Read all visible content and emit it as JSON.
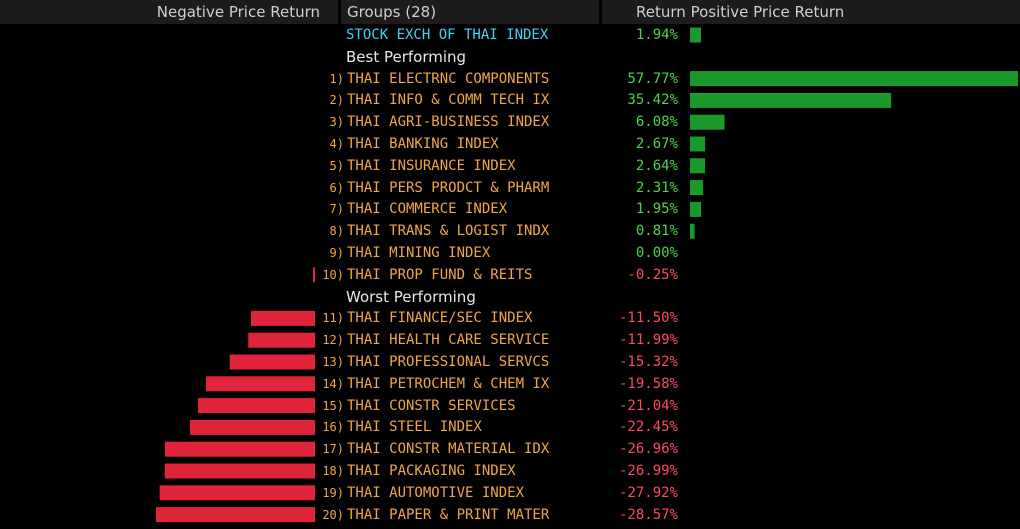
{
  "header": {
    "negative_label": "Negative Price Return",
    "groups_label": "Groups (28)",
    "return_label": "Return",
    "positive_label": "Positive Price Return"
  },
  "sections": {
    "best": "Best Performing",
    "worst": "Worst Performing"
  },
  "colors": {
    "positive": "#1a9a2a",
    "negative": "#e0243a"
  },
  "chart_data": {
    "type": "bar",
    "benchmark": {
      "name": "STOCK EXCH OF THAI INDEX",
      "value": 1.94,
      "label": "1.94%"
    },
    "rows": [
      {
        "rank": "1)",
        "name": "THAI ELECTRNC COMPONENTS",
        "value": 57.77,
        "label": "57.77%"
      },
      {
        "rank": "2)",
        "name": "THAI INFO & COMM TECH IX",
        "value": 35.42,
        "label": "35.42%"
      },
      {
        "rank": "3)",
        "name": "THAI AGRI-BUSINESS INDEX",
        "value": 6.08,
        "label": "6.08%"
      },
      {
        "rank": "4)",
        "name": "THAI BANKING INDEX",
        "value": 2.67,
        "label": "2.67%"
      },
      {
        "rank": "5)",
        "name": "THAI INSURANCE INDEX",
        "value": 2.64,
        "label": "2.64%"
      },
      {
        "rank": "6)",
        "name": "THAI PERS PRODCT & PHARM",
        "value": 2.31,
        "label": "2.31%"
      },
      {
        "rank": "7)",
        "name": "THAI COMMERCE INDEX",
        "value": 1.95,
        "label": "1.95%"
      },
      {
        "rank": "8)",
        "name": "THAI TRANS & LOGIST INDX",
        "value": 0.81,
        "label": "0.81%"
      },
      {
        "rank": "9)",
        "name": "THAI MINING INDEX",
        "value": 0.0,
        "label": "0.00%"
      },
      {
        "rank": "10)",
        "name": "THAI PROP FUND & REITS",
        "value": -0.25,
        "label": "-0.25%"
      },
      {
        "rank": "11)",
        "name": "THAI FINANCE/SEC INDEX",
        "value": -11.5,
        "label": "-11.50%"
      },
      {
        "rank": "12)",
        "name": "THAI HEALTH CARE SERVICE",
        "value": -11.99,
        "label": "-11.99%"
      },
      {
        "rank": "13)",
        "name": "THAI PROFESSIONAL SERVCS",
        "value": -15.32,
        "label": "-15.32%"
      },
      {
        "rank": "14)",
        "name": "THAI PETROCHEM & CHEM IX",
        "value": -19.58,
        "label": "-19.58%"
      },
      {
        "rank": "15)",
        "name": "THAI CONSTR SERVICES",
        "value": -21.04,
        "label": "-21.04%"
      },
      {
        "rank": "16)",
        "name": "THAI STEEL INDEX",
        "value": -22.45,
        "label": "-22.45%"
      },
      {
        "rank": "17)",
        "name": "THAI CONSTR MATERIAL IDX",
        "value": -26.96,
        "label": "-26.96%"
      },
      {
        "rank": "18)",
        "name": "THAI PACKAGING INDEX",
        "value": -26.99,
        "label": "-26.99%"
      },
      {
        "rank": "19)",
        "name": "THAI AUTOMOTIVE INDEX",
        "value": -27.92,
        "label": "-27.92%"
      },
      {
        "rank": "20)",
        "name": "THAI PAPER & PRINT MATER",
        "value": -28.57,
        "label": "-28.57%"
      }
    ]
  }
}
